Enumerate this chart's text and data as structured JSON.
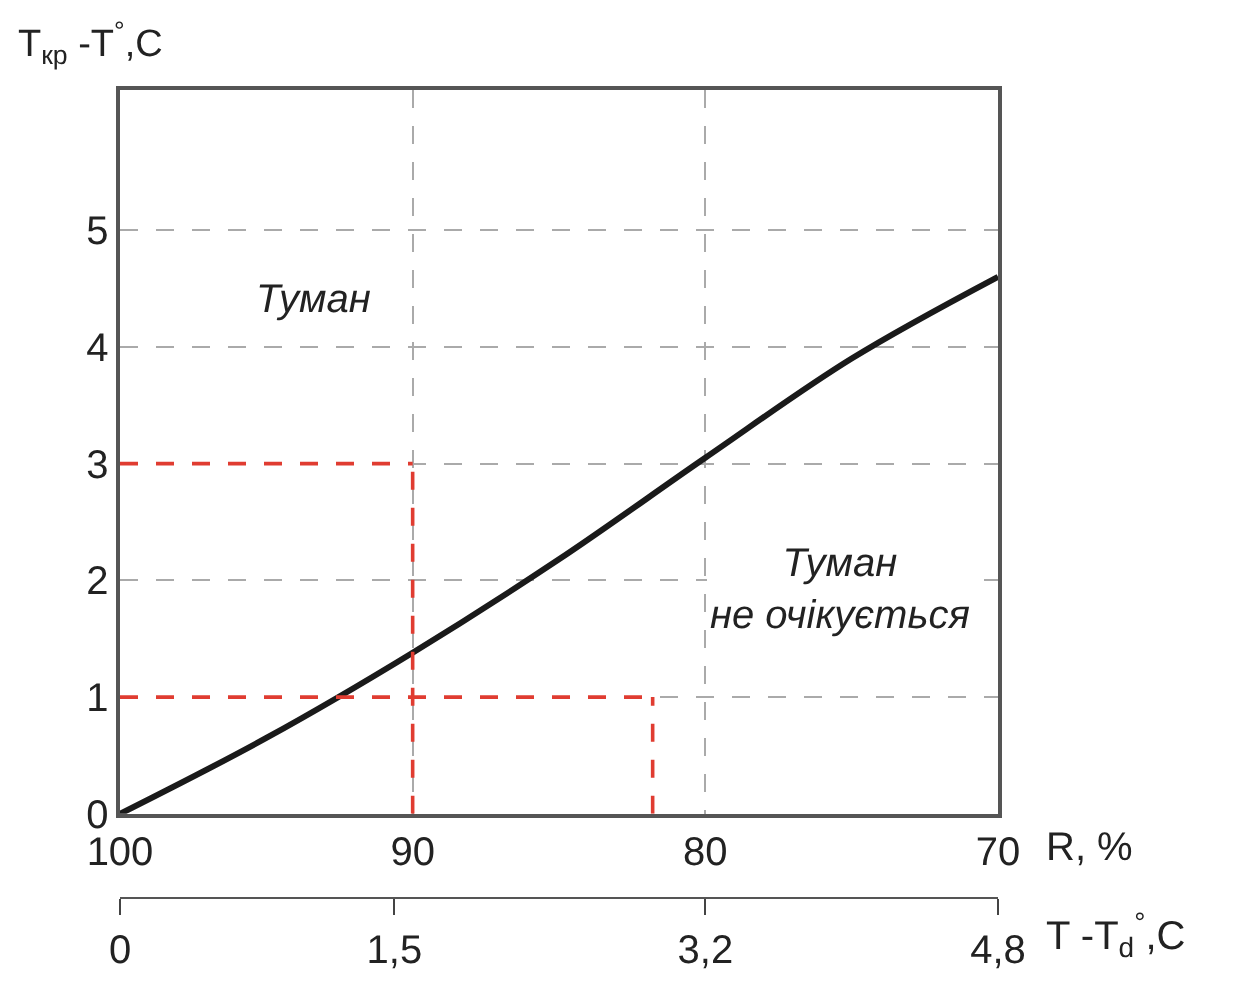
{
  "chart_data": {
    "type": "line",
    "ylabel": "T$_{кр}$ -T$^{°}$,C",
    "xlabel": "R, %",
    "x2label": "T -T$_{d}$$^{°}$,C",
    "annotations": [
      "Туман",
      "Туман\nне очікується"
    ],
    "xlim": [
      100,
      70
    ],
    "xticks": [
      100,
      90,
      80,
      70
    ],
    "x2lim": [
      0,
      4.8
    ],
    "x2ticks": [
      0,
      {
        "value": 1.5,
        "label": "1,5"
      },
      {
        "value": 3.2,
        "label": "3,2"
      },
      {
        "value": 4.8,
        "label": "4,8"
      }
    ],
    "ylim": [
      0,
      6.2
    ],
    "yticks": [
      0,
      1,
      2,
      3,
      4,
      5
    ],
    "grid": true,
    "series": [
      {
        "color": "#1a1a1a",
        "x": [
          100,
          95,
          90,
          85,
          80,
          75,
          70
        ],
        "values": [
          0,
          0.65,
          1.38,
          2.18,
          3.05,
          3.9,
          4.6
        ],
        "line_style": "solid"
      },
      {
        "color": "#e03c31",
        "x": [
          100,
          90
        ],
        "values": [
          3,
          3
        ],
        "line_style": "dashed"
      },
      {
        "color": "#e03c31",
        "x": [
          90,
          90
        ],
        "values": [
          0,
          3
        ],
        "line_style": "dashed"
      },
      {
        "color": "#e03c31",
        "x": [
          100,
          81.8
        ],
        "values": [
          1,
          1
        ],
        "line_style": "dashed"
      },
      {
        "color": "#e03c31",
        "x": [
          81.8,
          81.8
        ],
        "values": [
          0,
          1
        ],
        "line_style": "dashed"
      }
    ]
  }
}
